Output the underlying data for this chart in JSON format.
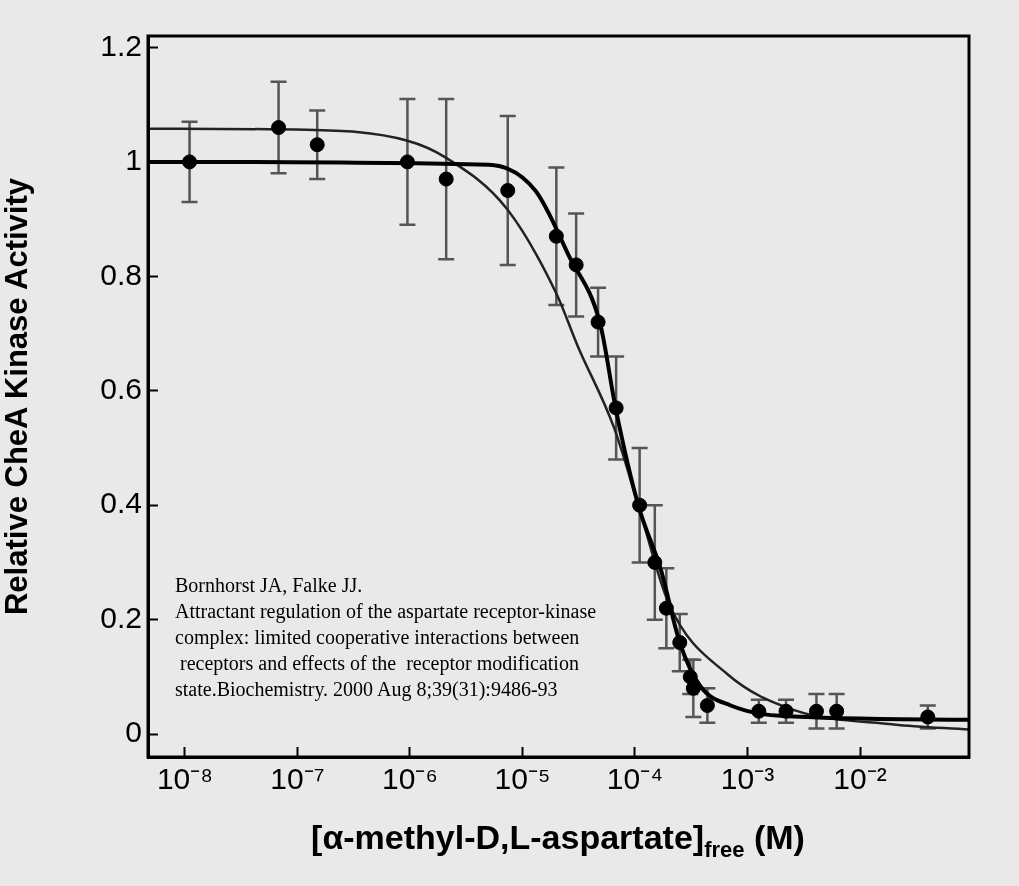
{
  "chart_data": {
    "type": "scatter",
    "xlabel": "[α-methyl-D,L-aspartate]$_{free}$ (M)",
    "ylabel": "Relative CheA Kinase Activity",
    "log": "x",
    "xlim": [
      4.7e-09,
      0.093
    ],
    "xticks": [
      {
        "value": 1e-08,
        "label": "10⁻⁸"
      },
      {
        "value": 1e-07,
        "label": "10⁻⁷"
      },
      {
        "value": 1e-06,
        "label": "10⁻⁶"
      },
      {
        "value": 1e-05,
        "label": "10⁻⁵"
      },
      {
        "value": 0.0001,
        "label": "10⁻⁴"
      },
      {
        "value": 0.001,
        "label": "10⁻³"
      },
      {
        "value": 0.01,
        "label": "10⁻²"
      }
    ],
    "ylim": [
      -0.04,
      1.22
    ],
    "yticks": [
      0,
      0.2,
      0.4,
      0.6,
      0.8,
      1,
      1.2
    ],
    "grid": false,
    "legend": false,
    "line_style": "solid",
    "series": [
      {
        "marker": "circle",
        "color": "#000000",
        "x": [
          1.1e-08,
          6.8e-08,
          1.5e-07,
          9.5e-07,
          2.1e-06,
          7.4e-06,
          2e-05,
          3e-05,
          4.7e-05,
          6.8e-05,
          0.00011,
          0.00015,
          0.00019,
          0.00025,
          0.00031,
          0.00033,
          0.00044,
          0.00126,
          0.0022,
          0.0041,
          0.0062,
          0.04
        ],
        "values": [
          1.0,
          1.06,
          1.03,
          1.0,
          0.97,
          0.95,
          0.87,
          0.82,
          0.72,
          0.57,
          0.4,
          0.3,
          0.22,
          0.16,
          0.1,
          0.08,
          0.05,
          0.04,
          0.04,
          0.04,
          0.04,
          0.03
        ],
        "errors": [
          0.07,
          0.08,
          0.06,
          0.11,
          0.14,
          0.13,
          0.12,
          0.09,
          0.06,
          0.09,
          0.1,
          0.1,
          0.07,
          0.05,
          0.03,
          0.05,
          0.03,
          0.02,
          0.02,
          0.03,
          0.03,
          0.02
        ]
      },
      {
        "type": "line",
        "marker": "none",
        "color": "#000000",
        "x": [
          4.7e-09,
          5e-06,
          1.3e-05,
          2.6e-05,
          4.9e-05,
          6.8e-05,
          0.000107,
          0.00017,
          0.00025,
          0.00038,
          0.00071,
          0.00195,
          0.093
        ],
        "values": [
          1.0,
          0.995,
          0.95,
          0.835,
          0.717,
          0.565,
          0.4,
          0.287,
          0.16,
          0.084,
          0.05,
          0.032,
          0.025
        ]
      },
      {
        "type": "line",
        "marker": "none",
        "color": "#222222",
        "x": [
          4.9e-09,
          1.2e-07,
          9.5e-07,
          2.1e-06,
          7.2e-06,
          2e-05,
          3.1e-05,
          6.5e-05,
          0.000107,
          0.0002,
          0.00066,
          0.0026,
          0.02,
          0.093
        ],
        "values": [
          1.058,
          1.056,
          1.037,
          1.007,
          0.919,
          0.77,
          0.678,
          0.536,
          0.4,
          0.228,
          0.105,
          0.042,
          0.017,
          0.008
        ]
      }
    ],
    "annotations": [
      "Bornhorst JA, Falke JJ.\nAttractant regulation of the aspartate receptor-kinase\ncomplex: limited cooperative interactions between\n receptors and effects of the  receptor modification\nstate.Biochemistry. 2000 Aug 8;39(31):9486-93"
    ]
  }
}
